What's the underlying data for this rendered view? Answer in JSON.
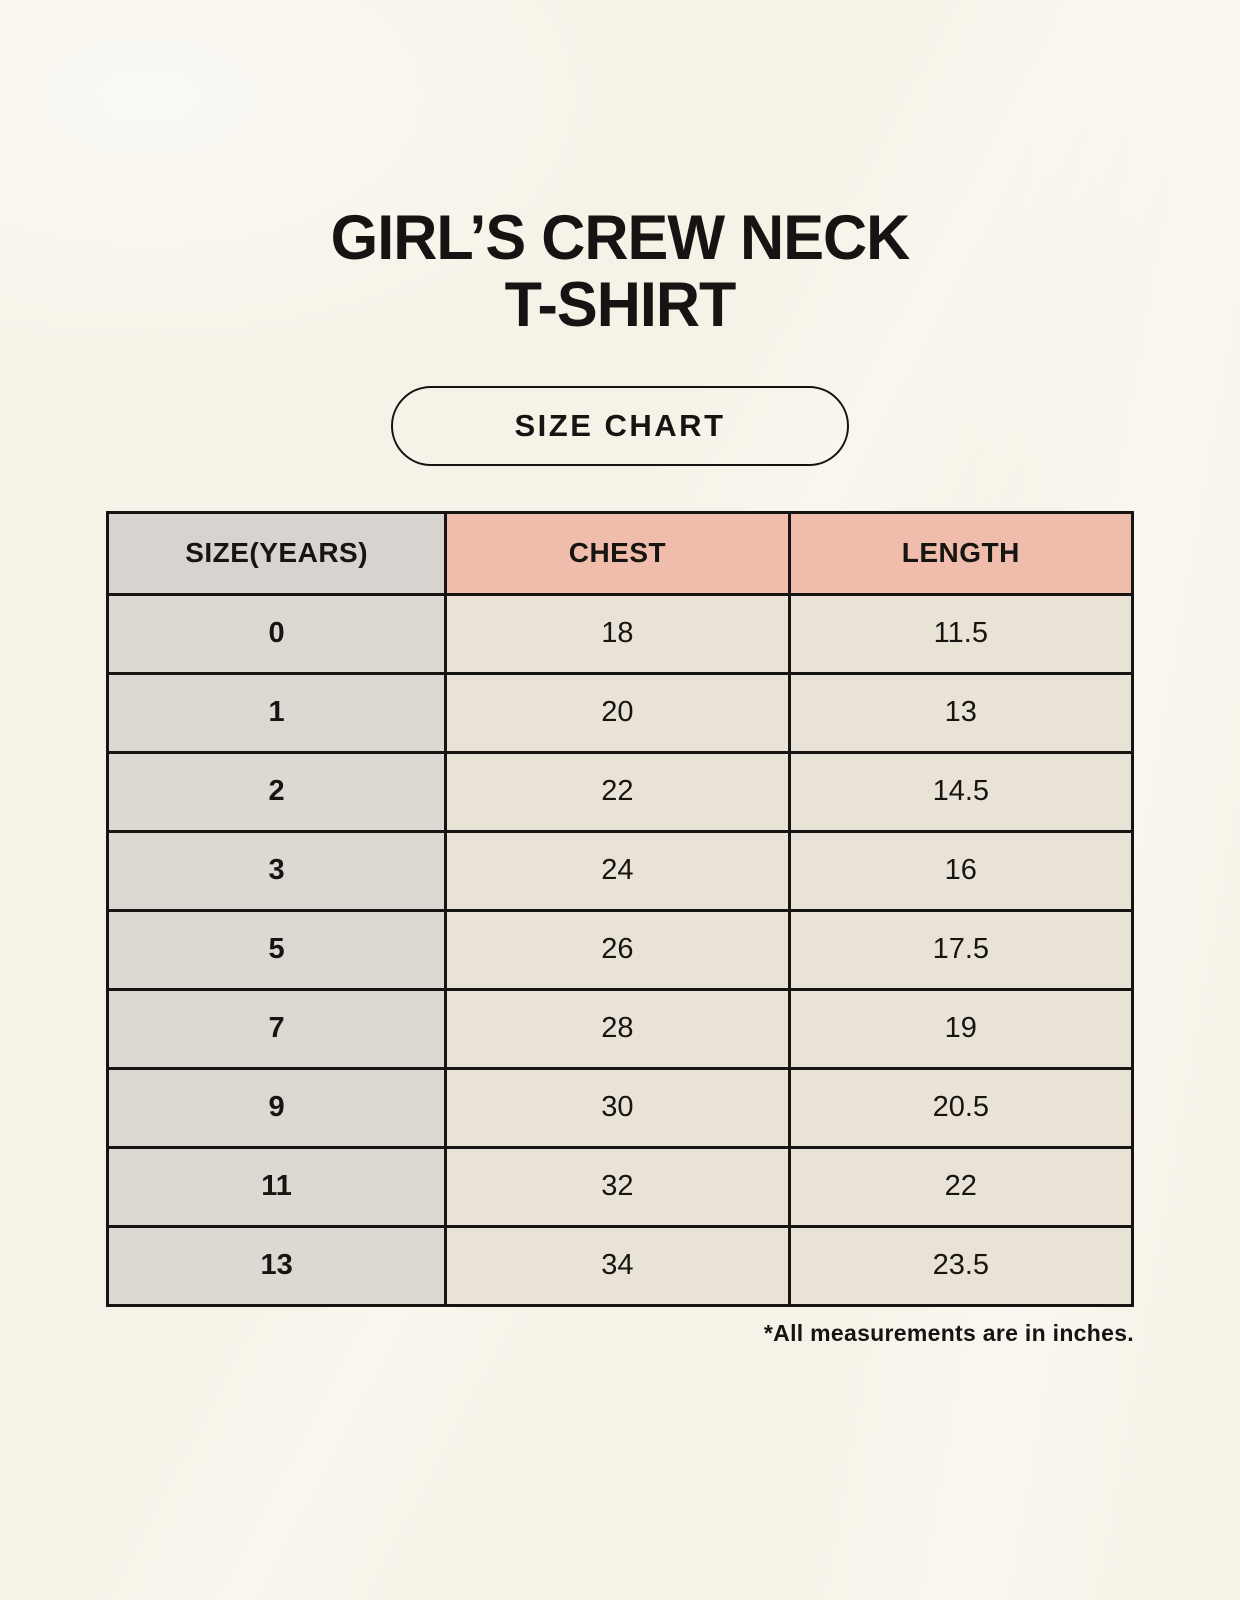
{
  "page": {
    "title_line1": "GIRL’S CREW NECK",
    "title_line2": "T-SHIRT",
    "size_chart_label": "SIZE CHART",
    "footnote": "*All measurements are in inches."
  },
  "colors": {
    "background": "#f6f2e7",
    "header_size_bg": "#d9d3cf",
    "header_accent_bg": "#f0bcac",
    "row_size_bg": "#ded8d3",
    "row_value_bg": "#e9e2d6",
    "border": "#171512",
    "text": "#161412"
  },
  "table": {
    "columns": [
      "SIZE(YEARS)",
      "CHEST",
      "LENGTH"
    ],
    "rows": [
      [
        "0",
        "18",
        "11.5"
      ],
      [
        "1",
        "20",
        "13"
      ],
      [
        "2",
        "22",
        "14.5"
      ],
      [
        "3",
        "24",
        "16"
      ],
      [
        "5",
        "26",
        "17.5"
      ],
      [
        "7",
        "28",
        "19"
      ],
      [
        "9",
        "30",
        "20.5"
      ],
      [
        "11",
        "32",
        "22"
      ],
      [
        "13",
        "34",
        "23.5"
      ]
    ]
  },
  "chart_data": {
    "type": "table",
    "title": "GIRL’S CREW NECK T-SHIRT — SIZE CHART",
    "columns": [
      "SIZE(YEARS)",
      "CHEST",
      "LENGTH"
    ],
    "rows": [
      {
        "size_years": "0",
        "chest": 18,
        "length": 11.5
      },
      {
        "size_years": "1",
        "chest": 20,
        "length": 13
      },
      {
        "size_years": "2",
        "chest": 22,
        "length": 14.5
      },
      {
        "size_years": "3",
        "chest": 24,
        "length": 16
      },
      {
        "size_years": "5",
        "chest": 26,
        "length": 17.5
      },
      {
        "size_years": "7",
        "chest": 28,
        "length": 19
      },
      {
        "size_years": "9",
        "chest": 30,
        "length": 20.5
      },
      {
        "size_years": "11",
        "chest": 32,
        "length": 22
      },
      {
        "size_years": "13",
        "chest": 34,
        "length": 23.5
      }
    ],
    "units_note": "*All measurements are in inches."
  }
}
